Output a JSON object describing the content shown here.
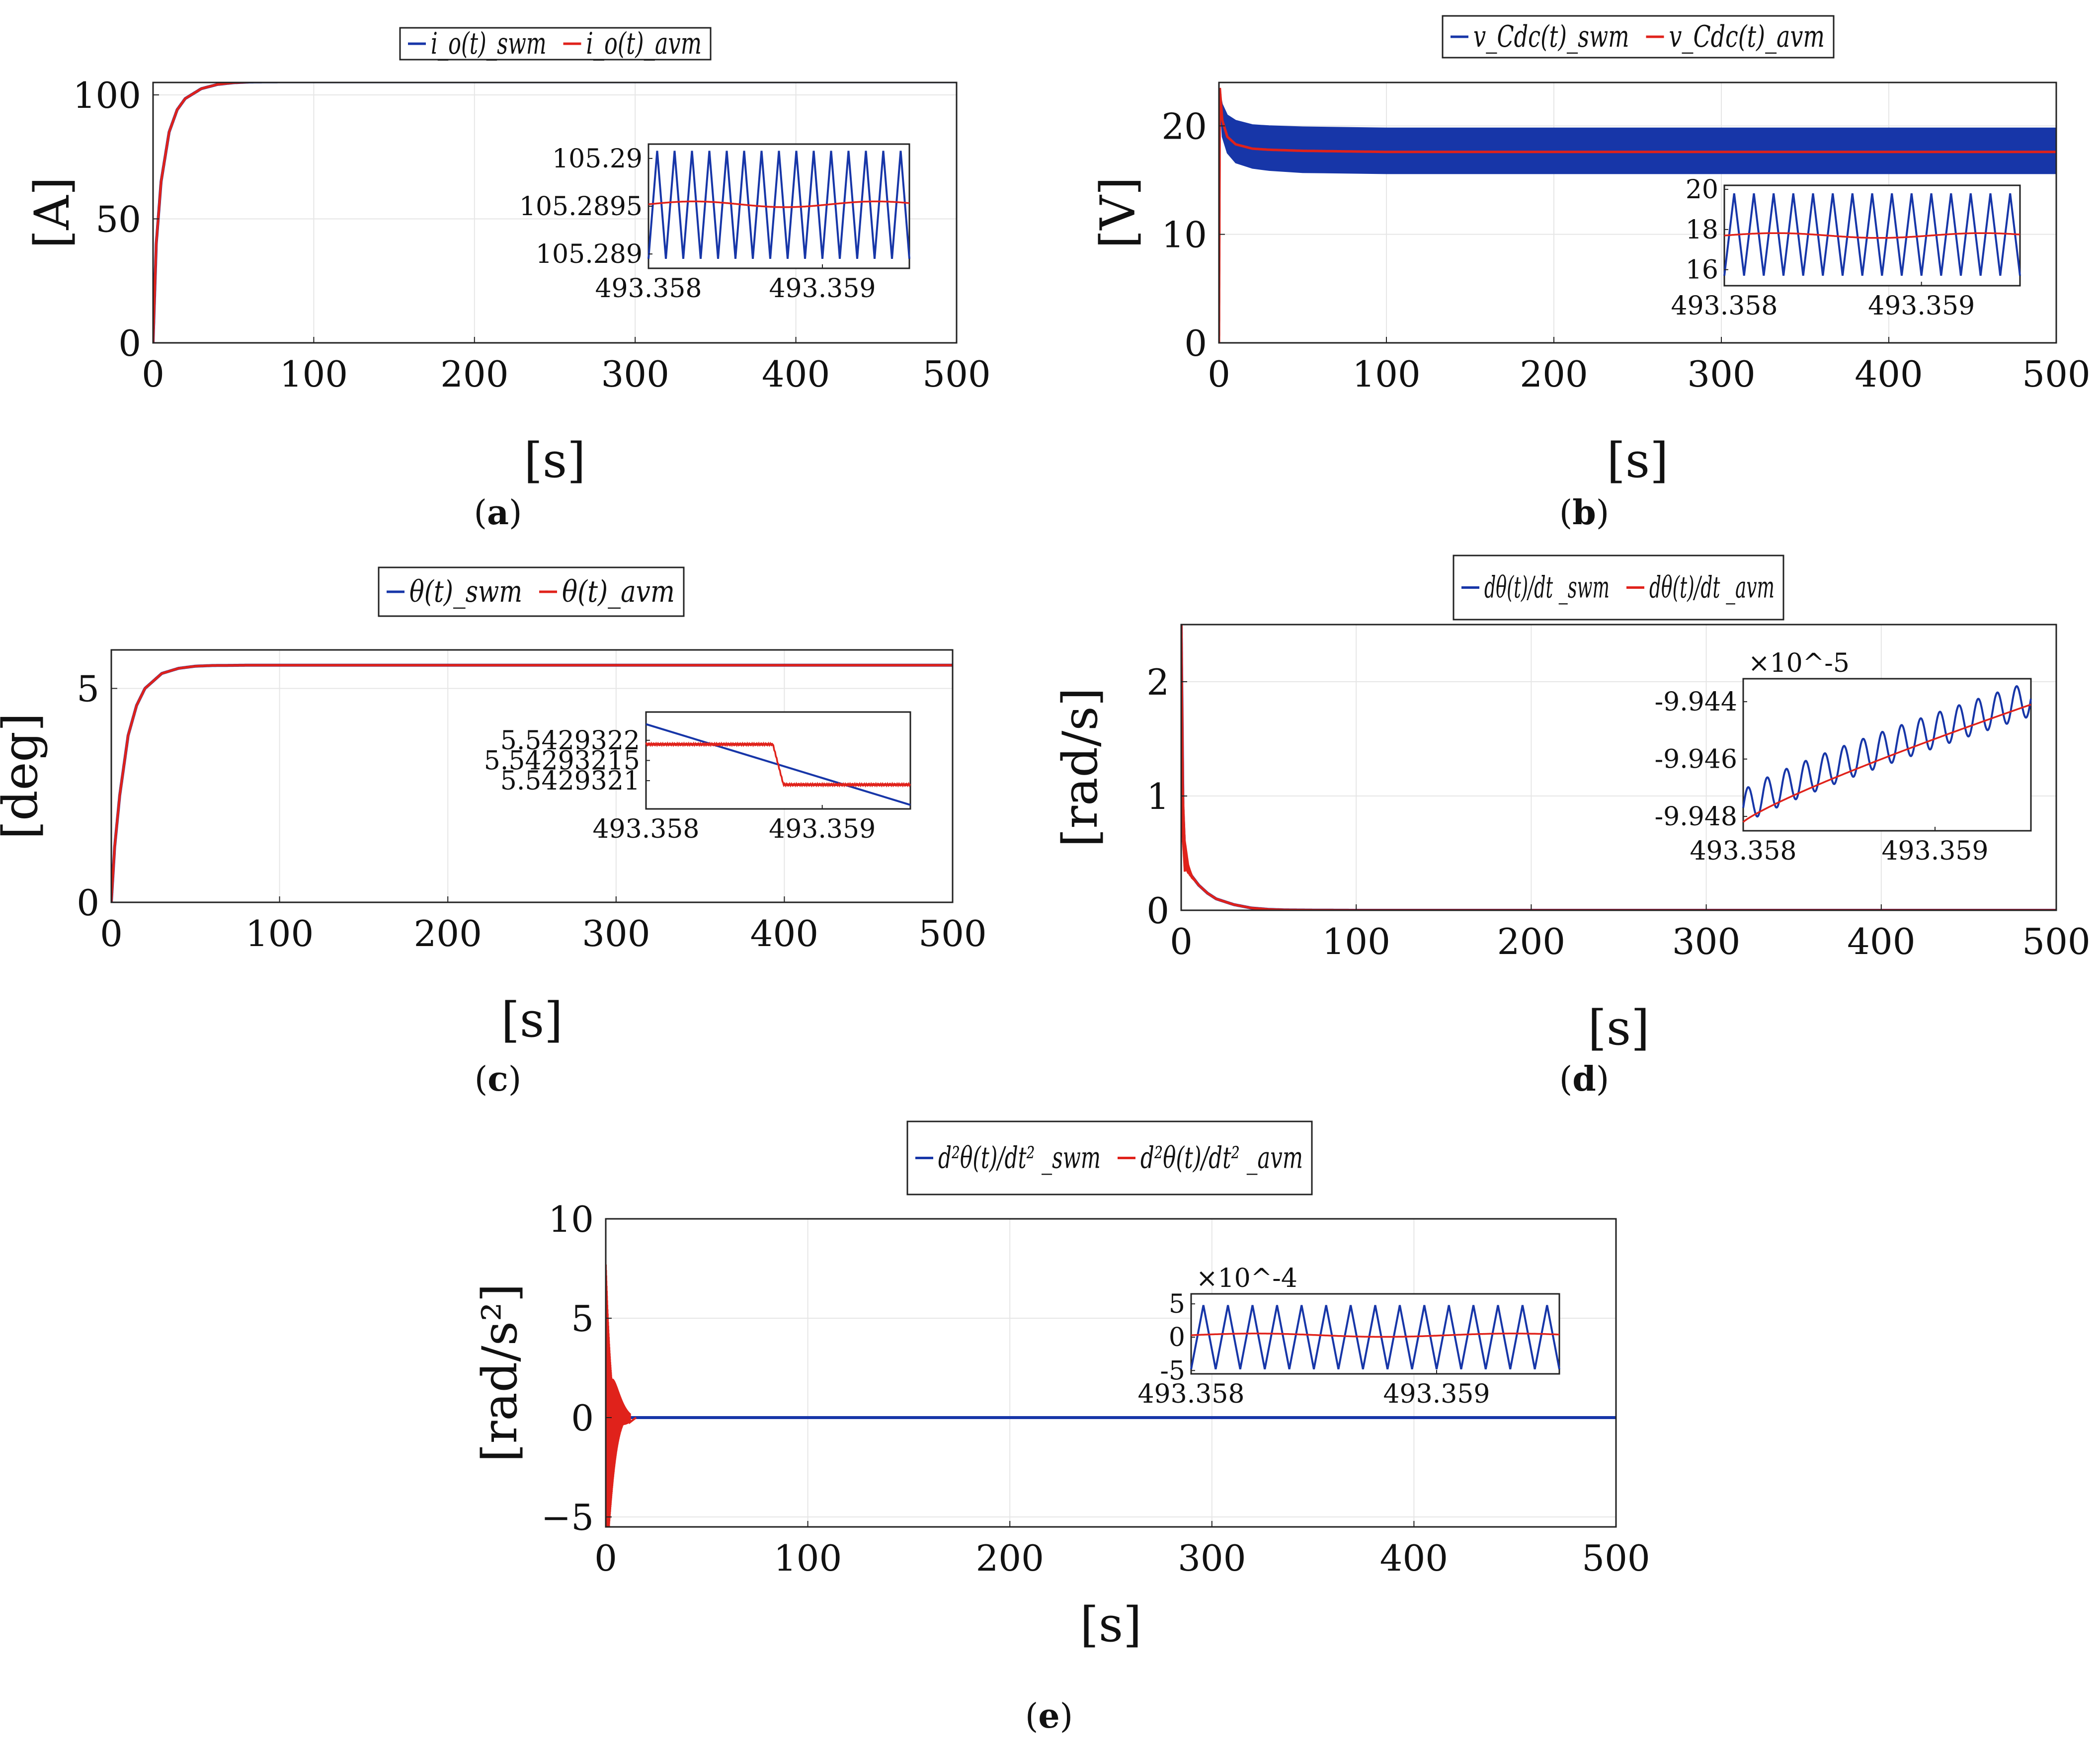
{
  "colors": {
    "swm": "#1736a8",
    "avm": "#e0221b",
    "frame": "#222222",
    "grid": "#e6e6e6"
  },
  "chart_data": [
    {
      "id": "a",
      "type": "line",
      "caption_label": "a",
      "xlabel": "[s]",
      "ylabel": "[A]",
      "xlim": [
        0,
        500
      ],
      "ylim": [
        0,
        105
      ],
      "xticks": [
        0,
        100,
        200,
        300,
        400,
        500
      ],
      "xtick_labels": [
        "0",
        "100",
        "200",
        "300",
        "400",
        "500"
      ],
      "yticks": [
        0,
        50,
        100
      ],
      "ytick_labels": [
        "0",
        "50",
        "100"
      ],
      "legend": {
        "swm": "i_o(t)_swm",
        "avm": "i_o(t)_avm"
      },
      "series": [
        {
          "name": "swm",
          "x": [
            0,
            2,
            5,
            10,
            15,
            20,
            30,
            40,
            50,
            60,
            80,
            100,
            200,
            300,
            400,
            500
          ],
          "y": [
            0,
            40,
            65,
            85,
            94,
            98.5,
            102.5,
            104.2,
            104.9,
            105.2,
            105.28,
            105.29,
            105.29,
            105.29,
            105.29,
            105.29
          ]
        },
        {
          "name": "avm",
          "x": [
            0,
            2,
            5,
            10,
            15,
            20,
            30,
            40,
            50,
            60,
            80,
            100,
            200,
            300,
            400,
            500
          ],
          "y": [
            0,
            40,
            65,
            85,
            94,
            98.5,
            102.5,
            104.2,
            104.9,
            105.2,
            105.28,
            105.29,
            105.29,
            105.29,
            105.29,
            105.29
          ]
        }
      ],
      "inset": {
        "xlim": [
          493.358,
          493.3595
        ],
        "ylim": [
          105.28885,
          105.29015
        ],
        "xticks": [
          493.358,
          493.359
        ],
        "xtick_labels": [
          "493.358",
          "493.359"
        ],
        "yticks": [
          105.289,
          105.2895,
          105.29
        ],
        "ytick_labels": [
          "105.289",
          "105.2895",
          "105.29"
        ],
        "swm": {
          "kind": "sawtooth",
          "cycles": 15,
          "low": 105.28895,
          "high": 105.29008
        },
        "avm": {
          "level": 105.28952,
          "wobble": 3e-05
        }
      }
    },
    {
      "id": "b",
      "type": "line",
      "caption_label": "b",
      "xlabel": "[s]",
      "ylabel": "[V]",
      "xlim": [
        0,
        500
      ],
      "ylim": [
        0,
        24
      ],
      "xticks": [
        0,
        100,
        200,
        300,
        400,
        500
      ],
      "xtick_labels": [
        "0",
        "100",
        "200",
        "300",
        "400",
        "500"
      ],
      "yticks": [
        0,
        10,
        20
      ],
      "ytick_labels": [
        "0",
        "10",
        "20"
      ],
      "legend": {
        "swm": "v_Cdc(t)_swm",
        "avm": "v_Cdc(t)_avm"
      },
      "band": {
        "name": "swm",
        "x": [
          0,
          2,
          5,
          10,
          20,
          30,
          50,
          100,
          200,
          300,
          400,
          500
        ],
        "low": [
          23.5,
          19.0,
          17.5,
          16.6,
          16.1,
          15.9,
          15.7,
          15.6,
          15.6,
          15.6,
          15.6,
          15.6
        ],
        "high": [
          23.5,
          22.0,
          21.0,
          20.5,
          20.1,
          20.0,
          19.9,
          19.8,
          19.8,
          19.8,
          19.8,
          19.8
        ]
      },
      "series": [
        {
          "name": "avm",
          "x": [
            0,
            0.5,
            2,
            5,
            10,
            20,
            30,
            50,
            100,
            200,
            300,
            400,
            500
          ],
          "y": [
            0,
            23.5,
            20.5,
            19.0,
            18.3,
            17.9,
            17.8,
            17.7,
            17.6,
            17.6,
            17.6,
            17.6,
            17.6
          ]
        }
      ],
      "inset": {
        "xlim": [
          493.358,
          493.3595
        ],
        "ylim": [
          15.2,
          20.2
        ],
        "xticks": [
          493.358,
          493.359
        ],
        "xtick_labels": [
          "493.358",
          "493.359"
        ],
        "yticks": [
          16,
          18,
          20
        ],
        "ytick_labels": [
          "16",
          "18",
          "20"
        ],
        "swm": {
          "kind": "sawtooth",
          "cycles": 15,
          "low": 15.7,
          "high": 19.8
        },
        "avm": {
          "level": 17.7,
          "wobble": 0.12
        }
      }
    },
    {
      "id": "c",
      "type": "line",
      "caption_label": "c",
      "xlabel": "[s]",
      "ylabel": "[deg]",
      "xlim": [
        0,
        500
      ],
      "ylim": [
        0,
        5.9
      ],
      "xticks": [
        0,
        100,
        200,
        300,
        400,
        500
      ],
      "xtick_labels": [
        "0",
        "100",
        "200",
        "300",
        "400",
        "500"
      ],
      "yticks": [
        0,
        5
      ],
      "ytick_labels": [
        "0",
        "5"
      ],
      "legend": {
        "swm": "θ(t)_swm",
        "avm": "θ(t)_avm"
      },
      "series": [
        {
          "name": "swm",
          "x": [
            0,
            2,
            5,
            10,
            15,
            20,
            30,
            40,
            50,
            60,
            80,
            100,
            200,
            300,
            400,
            500
          ],
          "y": [
            0,
            1.3,
            2.5,
            3.9,
            4.6,
            5.0,
            5.35,
            5.47,
            5.52,
            5.535,
            5.542,
            5.543,
            5.543,
            5.543,
            5.543,
            5.543
          ]
        },
        {
          "name": "avm",
          "x": [
            0,
            2,
            5,
            10,
            15,
            20,
            30,
            40,
            50,
            60,
            80,
            100,
            200,
            300,
            400,
            500
          ],
          "y": [
            0,
            1.3,
            2.5,
            3.9,
            4.6,
            5.0,
            5.35,
            5.47,
            5.52,
            5.535,
            5.542,
            5.543,
            5.543,
            5.543,
            5.543,
            5.543
          ]
        }
      ],
      "inset": {
        "xlim": [
          493.358,
          493.3595
        ],
        "ylim": [
          5.54293203,
          5.54293227
        ],
        "xticks": [
          493.358,
          493.359
        ],
        "xtick_labels": [
          "493.358",
          "493.359"
        ],
        "yticks": [
          5.5429321,
          5.54293215,
          5.5429322
        ],
        "ytick_labels": [
          "5.5429321",
          "5.54293215",
          "5.5429322"
        ],
        "swm": {
          "kind": "line",
          "x": [
            493.358,
            493.3595
          ],
          "y": [
            5.54293224,
            5.54293204
          ]
        },
        "avm": {
          "kind": "step",
          "x": [
            493.358,
            493.35872,
            493.35878,
            493.3595
          ],
          "y": [
            5.54293219,
            5.54293219,
            5.54293209,
            5.54293209
          ],
          "wobble": 2e-09
        }
      }
    },
    {
      "id": "d",
      "type": "line",
      "caption_label": "d",
      "xlabel": "[s]",
      "ylabel": "[rad/s]",
      "xlim": [
        0,
        500
      ],
      "ylim": [
        0,
        2.5
      ],
      "xticks": [
        0,
        100,
        200,
        300,
        400,
        500
      ],
      "xtick_labels": [
        "0",
        "100",
        "200",
        "300",
        "400",
        "500"
      ],
      "yticks": [
        0,
        1,
        2
      ],
      "ytick_labels": [
        "0",
        "1",
        "2"
      ],
      "legend": {
        "swm": "dθ(t)/dt _swm",
        "avm": "dθ(t)/dt _avm"
      },
      "series": [
        {
          "name": "swm",
          "x": [
            0,
            1,
            2,
            4,
            6,
            10,
            15,
            20,
            30,
            40,
            50,
            60,
            80,
            100,
            500
          ],
          "y": [
            2.5,
            0.9,
            0.5,
            0.35,
            0.3,
            0.22,
            0.15,
            0.1,
            0.05,
            0.02,
            0.008,
            0.003,
            0.001,
            0,
            0
          ]
        },
        {
          "name": "avm",
          "x": [
            0,
            1,
            2,
            4,
            6,
            10,
            15,
            20,
            30,
            40,
            50,
            60,
            80,
            100,
            500
          ],
          "y": [
            2.5,
            0.9,
            0.5,
            0.35,
            0.3,
            0.22,
            0.15,
            0.1,
            0.05,
            0.02,
            0.008,
            0.003,
            0.001,
            0,
            0
          ]
        }
      ],
      "burst": {
        "series": "avm",
        "x_end": 6,
        "amplitude": 0.55
      },
      "inset": {
        "xlim": [
          493.358,
          493.3595
        ],
        "ylim": [
          -9.9485,
          -9.9432
        ],
        "xticks": [
          493.358,
          493.359
        ],
        "xtick_labels": [
          "493.358",
          "493.359"
        ],
        "yticks": [
          -9.948,
          -9.946,
          -9.944
        ],
        "ytick_labels": [
          "-9.948",
          "-9.946",
          "-9.944"
        ],
        "multiplier": "×10^-5",
        "swm": {
          "kind": "rising-oscillation",
          "cycles": 15,
          "from": -9.9477,
          "to": -9.9439,
          "amplitude": 0.0006
        },
        "avm": {
          "kind": "rising",
          "from": -9.9482,
          "to": -9.9441
        }
      }
    },
    {
      "id": "e",
      "type": "line",
      "caption_label": "e",
      "xlabel": "[s]",
      "ylabel": "[rad/s²]",
      "xlim": [
        0,
        500
      ],
      "ylim": [
        -5.5,
        10
      ],
      "xticks": [
        0,
        100,
        200,
        300,
        400,
        500
      ],
      "xtick_labels": [
        "0",
        "100",
        "200",
        "300",
        "400",
        "500"
      ],
      "yticks": [
        -5,
        0,
        5,
        10
      ],
      "ytick_labels": [
        "−5",
        "0",
        "5",
        "10"
      ],
      "legend": {
        "swm": "d²θ(t)/dt² _swm",
        "avm": "d²θ(t)/dt² _avm"
      },
      "series": [
        {
          "name": "swm",
          "x": [
            0,
            100,
            200,
            300,
            400,
            500
          ],
          "y": [
            0,
            0,
            0,
            0,
            0,
            0
          ]
        }
      ],
      "burst": {
        "series": "avm",
        "x_end": 12,
        "amplitude": 9
      },
      "inset": {
        "xlim": [
          493.358,
          493.3595
        ],
        "ylim": [
          -5.5,
          6.5
        ],
        "xticks": [
          493.358,
          493.359
        ],
        "xtick_labels": [
          "493.358",
          "493.359"
        ],
        "yticks": [
          -5,
          0,
          5
        ],
        "ytick_labels": [
          "-5",
          "0",
          "5"
        ],
        "multiplier": "×10^-4",
        "swm": {
          "kind": "sawtooth",
          "cycles": 15,
          "low": -4.8,
          "high": 4.8
        },
        "avm": {
          "level": 0.3,
          "wobble": 0.25
        }
      }
    }
  ]
}
